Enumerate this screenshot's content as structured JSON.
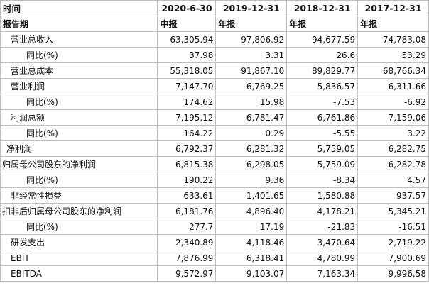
{
  "header": {
    "corner": "时间",
    "dates": [
      "2020-6-30",
      "2019-12-31",
      "2018-12-31",
      "2017-12-31"
    ]
  },
  "subheader": {
    "label": "报告期",
    "types": [
      "中报",
      "年报",
      "年报",
      "年报"
    ]
  },
  "rows": [
    {
      "label": "营业总收入",
      "indent": 1,
      "values": [
        "63,305.94",
        "97,806.92",
        "94,677.59",
        "74,783.08"
      ]
    },
    {
      "label": "同比(%)",
      "indent": 2,
      "values": [
        "37.98",
        "3.31",
        "26.6",
        "53.29"
      ]
    },
    {
      "label": "营业总成本",
      "indent": 1,
      "values": [
        "55,318.05",
        "91,867.10",
        "89,829.77",
        "68,766.34"
      ]
    },
    {
      "label": "营业利润",
      "indent": 1,
      "values": [
        "7,147.70",
        "6,769.25",
        "5,836.57",
        "6,311.66"
      ]
    },
    {
      "label": "同比(%)",
      "indent": 2,
      "values": [
        "174.62",
        "15.98",
        "-7.53",
        "-6.92"
      ]
    },
    {
      "label": "利润总额",
      "indent": 1,
      "values": [
        "7,195.12",
        "6,781.47",
        "6,761.86",
        "7,159.06"
      ]
    },
    {
      "label": "同比(%)",
      "indent": 2,
      "values": [
        "164.22",
        "0.29",
        "-5.55",
        "3.22"
      ]
    },
    {
      "label": "净利润",
      "indent": 0.5,
      "values": [
        "6,792.37",
        "6,281.32",
        "5,759.05",
        "6,282.75"
      ]
    },
    {
      "label": "归属母公司股东的净利润",
      "indent": 0,
      "values": [
        "6,815.38",
        "6,298.05",
        "5,759.09",
        "6,282.78"
      ]
    },
    {
      "label": "同比(%)",
      "indent": 2,
      "values": [
        "190.22",
        "9.36",
        "-8.34",
        "4.57"
      ]
    },
    {
      "label": "非经常性损益",
      "indent": 1,
      "values": [
        "633.61",
        "1,401.65",
        "1,580.88",
        "937.57"
      ]
    },
    {
      "label": "扣非后归属母公司股东的净利润",
      "indent": 0,
      "values": [
        "6,181.76",
        "4,896.40",
        "4,178.21",
        "5,345.21"
      ]
    },
    {
      "label": "同比(%)",
      "indent": 2,
      "values": [
        "277.7",
        "17.19",
        "-21.83",
        "-16.51"
      ]
    },
    {
      "label": "研发支出",
      "indent": 1,
      "values": [
        "2,340.89",
        "4,118.46",
        "3,470.64",
        "2,719.22"
      ]
    },
    {
      "label": "EBIT",
      "indent": 1,
      "values": [
        "7,876.99",
        "6,318.41",
        "4,780.99",
        "7,900.69"
      ]
    },
    {
      "label": "EBITDA",
      "indent": 1,
      "values": [
        "9,572.97",
        "9,103.07",
        "7,163.34",
        "9,996.58"
      ]
    }
  ]
}
